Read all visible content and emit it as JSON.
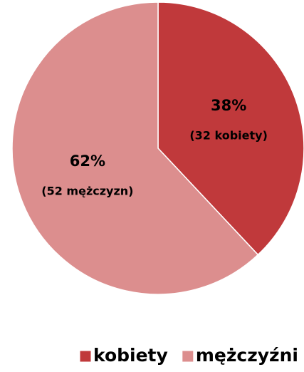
{
  "chart_data": {
    "type": "pie",
    "categories": [
      "kobiety",
      "mężczyźni"
    ],
    "values": [
      38,
      62
    ],
    "value_labels": [
      "38%",
      "62%"
    ],
    "annotations": [
      "(32 kobiety)",
      "(52 mężczyzn)"
    ],
    "colors": [
      "#c0393b",
      "#dc8e8e"
    ],
    "legend": "bottom"
  }
}
